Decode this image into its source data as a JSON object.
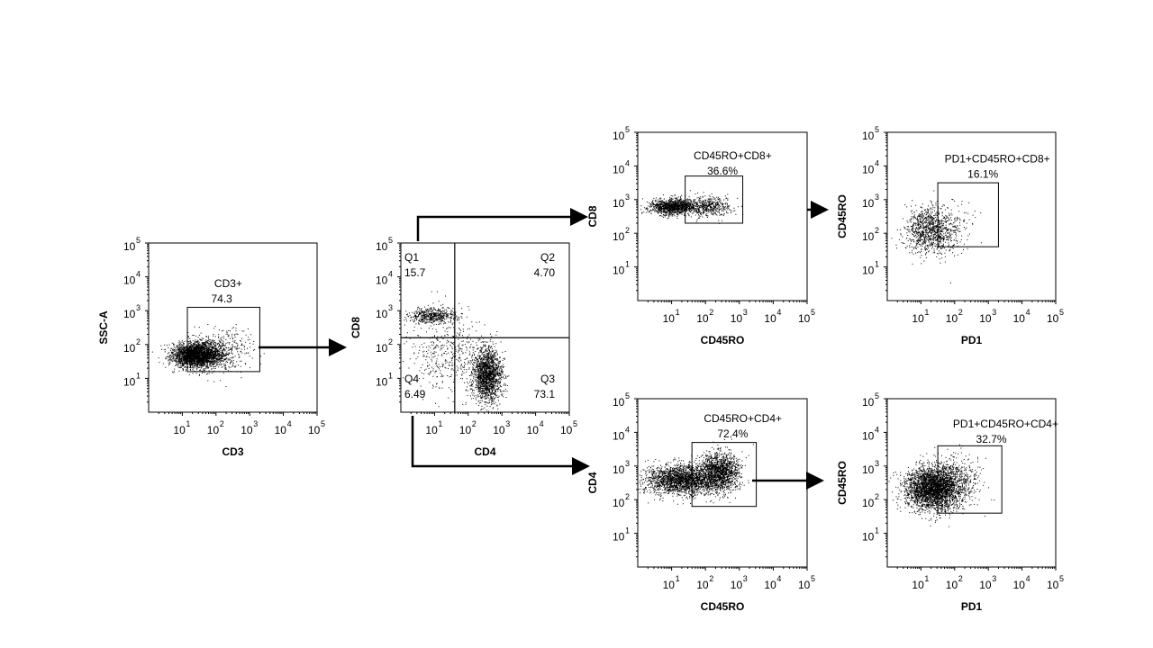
{
  "chart_data": [
    {
      "type": "scatter",
      "id": "cd3",
      "xlabel": "CD3",
      "ylabel": "SSC-A",
      "xlim": [
        0,
        5
      ],
      "ylim": [
        0,
        5
      ],
      "x_ticks": [
        1,
        2,
        3,
        4,
        5
      ],
      "y_ticks": [
        1,
        2,
        3,
        4,
        5
      ],
      "density_clusters": [
        {
          "x": 1.4,
          "y": 1.7,
          "sx": 0.35,
          "sy": 0.18,
          "n": 2600
        },
        {
          "x": 2.1,
          "y": 1.8,
          "sx": 0.45,
          "sy": 0.3,
          "n": 500
        }
      ],
      "gates": [
        {
          "kind": "rect",
          "name": "CD3+",
          "value": "74.3",
          "x": [
            1.15,
            3.3
          ],
          "y": [
            1.2,
            3.1
          ],
          "label_at": [
            1.95,
            3.7
          ]
        }
      ]
    },
    {
      "type": "scatter",
      "id": "cd4cd8",
      "xlabel": "CD4",
      "ylabel": "CD8",
      "xlim": [
        0,
        5
      ],
      "ylim": [
        0,
        5
      ],
      "x_ticks": [
        1,
        2,
        3,
        4,
        5
      ],
      "y_ticks": [
        1,
        2,
        3,
        4,
        5
      ],
      "density_clusters": [
        {
          "x": 0.95,
          "y": 2.85,
          "sx": 0.35,
          "sy": 0.12,
          "n": 500
        },
        {
          "x": 2.55,
          "y": 1.1,
          "sx": 0.22,
          "sy": 0.4,
          "n": 1700
        },
        {
          "x": 1.4,
          "y": 1.7,
          "sx": 0.6,
          "sy": 0.6,
          "n": 450
        }
      ],
      "quadrants": {
        "x_split": 1.6,
        "y_split": 2.2,
        "labels": [
          {
            "name": "Q1",
            "value": "15.7",
            "pos": "top-left"
          },
          {
            "name": "Q2",
            "value": "4.70",
            "pos": "top-right"
          },
          {
            "name": "Q4",
            "value": "6.49",
            "pos": "bottom-left"
          },
          {
            "name": "Q3",
            "value": "73.1",
            "pos": "bottom-right"
          }
        ]
      }
    },
    {
      "type": "scatter",
      "id": "cd8ro",
      "xlabel": "CD45RO",
      "ylabel": "CD8",
      "xlim": [
        0,
        5
      ],
      "ylim": [
        0,
        5
      ],
      "x_ticks": [
        1,
        2,
        3,
        4,
        5
      ],
      "y_ticks": [
        1,
        2,
        3,
        4,
        5
      ],
      "density_clusters": [
        {
          "x": 1.0,
          "y": 2.8,
          "sx": 0.35,
          "sy": 0.12,
          "n": 1100
        },
        {
          "x": 2.0,
          "y": 2.8,
          "sx": 0.4,
          "sy": 0.15,
          "n": 500
        }
      ],
      "gates": [
        {
          "kind": "rect",
          "name": "CD45RO+CD8+",
          "value": "36.6%",
          "x": [
            1.4,
            3.1
          ],
          "y": [
            2.3,
            3.7
          ],
          "label_at": [
            1.65,
            4.2
          ]
        }
      ]
    },
    {
      "type": "scatter",
      "id": "cd4ro",
      "xlabel": "CD45RO",
      "ylabel": "CD4",
      "xlim": [
        0,
        5
      ],
      "ylim": [
        0,
        5
      ],
      "x_ticks": [
        1,
        2,
        3,
        4,
        5
      ],
      "y_ticks": [
        1,
        2,
        3,
        4,
        5
      ],
      "density_clusters": [
        {
          "x": 1.3,
          "y": 2.6,
          "sx": 0.55,
          "sy": 0.22,
          "n": 2200
        },
        {
          "x": 2.4,
          "y": 2.85,
          "sx": 0.3,
          "sy": 0.28,
          "n": 1400
        }
      ],
      "gates": [
        {
          "kind": "rect",
          "name": "CD45RO+CD4+",
          "value": "72.4%",
          "x": [
            1.6,
            3.5
          ],
          "y": [
            1.8,
            3.7
          ],
          "label_at": [
            1.95,
            4.3
          ]
        }
      ]
    },
    {
      "type": "scatter",
      "id": "pd1cd8",
      "xlabel": "PD1",
      "ylabel": "CD45RO",
      "xlim": [
        0,
        5
      ],
      "ylim": [
        0,
        5
      ],
      "x_ticks": [
        1,
        2,
        3,
        4,
        5
      ],
      "y_ticks": [
        1,
        2,
        3,
        4,
        5
      ],
      "density_clusters": [
        {
          "x": 1.2,
          "y": 2.1,
          "sx": 0.35,
          "sy": 0.35,
          "n": 900
        },
        {
          "x": 1.9,
          "y": 2.2,
          "sx": 0.3,
          "sy": 0.4,
          "n": 180
        }
      ],
      "gates": [
        {
          "kind": "rect",
          "name": "PD1+CD45RO+CD8+",
          "value": "16.1%",
          "x": [
            1.5,
            3.3
          ],
          "y": [
            1.6,
            3.5
          ],
          "label_at": [
            1.7,
            4.1
          ]
        }
      ]
    },
    {
      "type": "scatter",
      "id": "pd1cd4",
      "xlabel": "PD1",
      "ylabel": "CD45RO",
      "xlim": [
        0,
        5
      ],
      "ylim": [
        0,
        5
      ],
      "x_ticks": [
        1,
        2,
        3,
        4,
        5
      ],
      "y_ticks": [
        1,
        2,
        3,
        4,
        5
      ],
      "density_clusters": [
        {
          "x": 1.35,
          "y": 2.35,
          "sx": 0.4,
          "sy": 0.32,
          "n": 3000
        },
        {
          "x": 2.1,
          "y": 2.6,
          "sx": 0.35,
          "sy": 0.35,
          "n": 400
        }
      ],
      "gates": [
        {
          "kind": "rect",
          "name": "PD1+CD45RO+CD4+",
          "value": "32.7%",
          "x": [
            1.5,
            3.4
          ],
          "y": [
            1.6,
            3.6
          ],
          "label_at": [
            1.95,
            4.15
          ]
        }
      ]
    }
  ]
}
